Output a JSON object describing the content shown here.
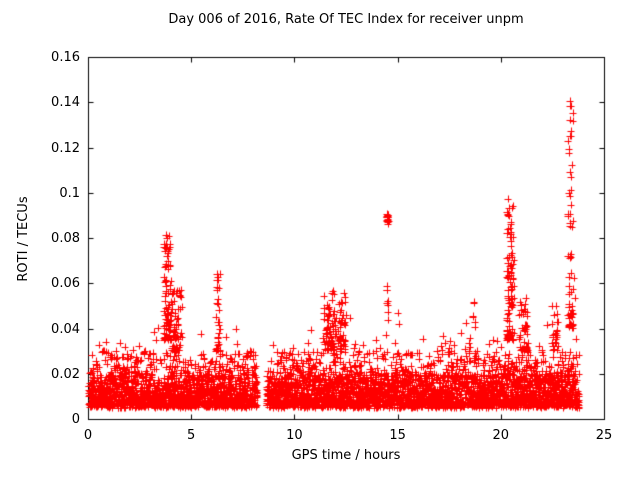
{
  "chart_data": {
    "type": "scatter",
    "title": "Day 006 of 2016, Rate Of TEC Index for receiver unpm",
    "xlabel": "GPS time / hours",
    "ylabel": "ROTI / TECUs",
    "xlim": [
      0,
      25
    ],
    "ylim": [
      0,
      0.16
    ],
    "xticks": {
      "values": [
        0,
        5,
        10,
        15,
        20,
        25
      ],
      "labels": [
        "0",
        "5",
        "10",
        "15",
        "20",
        "25"
      ]
    },
    "yticks": {
      "values": [
        0,
        0.02,
        0.04,
        0.06,
        0.08,
        0.1,
        0.12,
        0.14,
        0.16
      ],
      "labels": [
        "0",
        "0.02",
        "0.04",
        "0.06",
        "0.08",
        "0.1",
        "0.12",
        "0.14",
        "0.16"
      ]
    },
    "grid": false,
    "legend": "none",
    "marker": "plus",
    "marker_color": "#ff0000",
    "x_range_data": [
      0.05,
      23.8
    ],
    "data_gap_hours": [
      8.2,
      8.65
    ],
    "baseline_band": {
      "ymin": 0.005,
      "dense_top": 0.03,
      "exp_mean": 0.009
    },
    "envelope": [
      [
        0,
        0.04
      ],
      [
        0.5,
        0.038
      ],
      [
        1,
        0.036
      ],
      [
        1.5,
        0.034
      ],
      [
        2,
        0.04
      ],
      [
        2.5,
        0.036
      ],
      [
        3,
        0.045
      ],
      [
        3.5,
        0.055
      ],
      [
        3.8,
        0.083
      ],
      [
        4.1,
        0.065
      ],
      [
        4.5,
        0.058
      ],
      [
        5,
        0.042
      ],
      [
        5.5,
        0.038
      ],
      [
        6,
        0.045
      ],
      [
        6.3,
        0.065
      ],
      [
        6.6,
        0.048
      ],
      [
        7,
        0.042
      ],
      [
        7.5,
        0.04
      ],
      [
        8,
        0.036
      ],
      [
        8.2,
        0.034
      ],
      [
        8.7,
        0.03
      ],
      [
        9,
        0.034
      ],
      [
        9.5,
        0.035
      ],
      [
        10,
        0.038
      ],
      [
        10.5,
        0.04
      ],
      [
        11,
        0.045
      ],
      [
        11.5,
        0.058
      ],
      [
        12,
        0.06
      ],
      [
        12.5,
        0.055
      ],
      [
        13,
        0.048
      ],
      [
        13.5,
        0.044
      ],
      [
        14,
        0.05
      ],
      [
        14.5,
        0.06
      ],
      [
        15,
        0.05
      ],
      [
        15.5,
        0.055
      ],
      [
        16,
        0.048
      ],
      [
        16.5,
        0.044
      ],
      [
        17,
        0.04
      ],
      [
        17.5,
        0.042
      ],
      [
        18,
        0.045
      ],
      [
        18.5,
        0.055
      ],
      [
        19,
        0.045
      ],
      [
        19.5,
        0.05
      ],
      [
        20,
        0.06
      ],
      [
        20.4,
        0.09
      ],
      [
        20.7,
        0.075
      ],
      [
        21,
        0.06
      ],
      [
        21.5,
        0.055
      ],
      [
        22,
        0.05
      ],
      [
        22.5,
        0.052
      ],
      [
        23,
        0.06
      ],
      [
        23.3,
        0.08
      ],
      [
        23.5,
        0.07
      ],
      [
        23.8,
        0.055
      ]
    ],
    "spike_clusters": [
      {
        "x": 3.85,
        "w": 0.35,
        "ylo": 0.035,
        "yhi": 0.083,
        "n": 80,
        "bias": 1.8
      },
      {
        "x": 4.3,
        "w": 0.5,
        "ylo": 0.03,
        "yhi": 0.058,
        "n": 60,
        "bias": 1.5
      },
      {
        "x": 6.3,
        "w": 0.2,
        "ylo": 0.03,
        "yhi": 0.065,
        "n": 30,
        "bias": 1.5
      },
      {
        "x": 11.7,
        "w": 0.6,
        "ylo": 0.03,
        "yhi": 0.058,
        "n": 70,
        "bias": 1.5
      },
      {
        "x": 12.3,
        "w": 0.4,
        "ylo": 0.03,
        "yhi": 0.052,
        "n": 40,
        "bias": 1.5
      },
      {
        "x": 14.52,
        "w": 0.12,
        "ylo": 0.086,
        "yhi": 0.092,
        "n": 16,
        "bias": 1.0
      },
      {
        "x": 14.5,
        "w": 0.1,
        "ylo": 0.04,
        "yhi": 0.06,
        "n": 8,
        "bias": 1.2
      },
      {
        "x": 18.7,
        "w": 0.1,
        "ylo": 0.04,
        "yhi": 0.06,
        "n": 6,
        "bias": 1.2
      },
      {
        "x": 20.45,
        "w": 0.35,
        "ylo": 0.035,
        "yhi": 0.099,
        "n": 90,
        "bias": 1.8
      },
      {
        "x": 21.1,
        "w": 0.4,
        "ylo": 0.03,
        "yhi": 0.055,
        "n": 40,
        "bias": 1.5
      },
      {
        "x": 22.6,
        "w": 0.3,
        "ylo": 0.03,
        "yhi": 0.05,
        "n": 25,
        "bias": 1.5
      },
      {
        "x": 23.38,
        "w": 0.25,
        "ylo": 0.04,
        "yhi": 0.146,
        "n": 60,
        "bias": 2.2
      }
    ]
  }
}
